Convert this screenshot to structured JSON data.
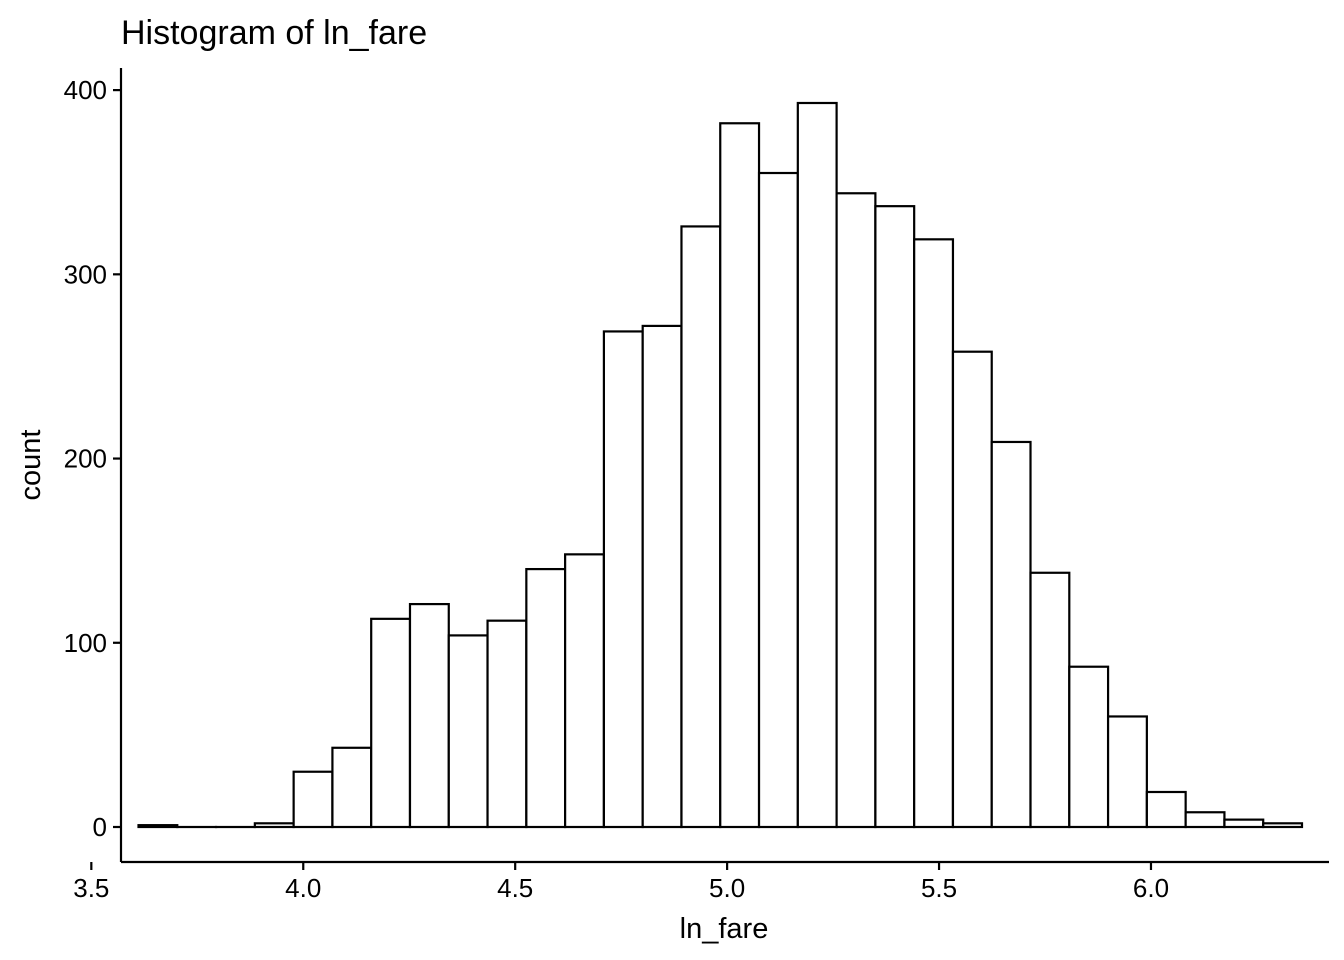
{
  "chart_data": {
    "type": "bar",
    "title": "Histogram of ln_fare",
    "xlabel": "ln_fare",
    "ylabel": "count",
    "xlim": [
      3.57,
      6.42
    ],
    "ylim": [
      -19,
      412
    ],
    "x_ticks": [
      {
        "value": 3.5,
        "label": "3.5"
      },
      {
        "value": 4.0,
        "label": "4.0"
      },
      {
        "value": 4.5,
        "label": "4.5"
      },
      {
        "value": 5.0,
        "label": "5.0"
      },
      {
        "value": 5.5,
        "label": "5.5"
      },
      {
        "value": 6.0,
        "label": "6.0"
      }
    ],
    "y_ticks": [
      {
        "value": 0,
        "label": "0"
      },
      {
        "value": 100,
        "label": "100"
      },
      {
        "value": 200,
        "label": "200"
      },
      {
        "value": 300,
        "label": "300"
      },
      {
        "value": 400,
        "label": "400"
      }
    ],
    "bins": [
      {
        "x0": 3.6113,
        "x1": 3.7028,
        "count": 1
      },
      {
        "x0": 3.7028,
        "x1": 3.7943,
        "count": 0
      },
      {
        "x0": 3.7943,
        "x1": 3.8858,
        "count": 0
      },
      {
        "x0": 3.8858,
        "x1": 3.9773,
        "count": 2
      },
      {
        "x0": 3.9773,
        "x1": 4.0688,
        "count": 30
      },
      {
        "x0": 4.0688,
        "x1": 4.1603,
        "count": 43
      },
      {
        "x0": 4.1603,
        "x1": 4.2518,
        "count": 113
      },
      {
        "x0": 4.2518,
        "x1": 4.3433,
        "count": 121
      },
      {
        "x0": 4.3433,
        "x1": 4.4348,
        "count": 104
      },
      {
        "x0": 4.4348,
        "x1": 4.5263,
        "count": 112
      },
      {
        "x0": 4.5263,
        "x1": 4.6178,
        "count": 140
      },
      {
        "x0": 4.6178,
        "x1": 4.7093,
        "count": 148
      },
      {
        "x0": 4.7093,
        "x1": 4.8008,
        "count": 269
      },
      {
        "x0": 4.8008,
        "x1": 4.8923,
        "count": 272
      },
      {
        "x0": 4.8923,
        "x1": 4.9838,
        "count": 326
      },
      {
        "x0": 4.9838,
        "x1": 5.0753,
        "count": 382
      },
      {
        "x0": 5.0753,
        "x1": 5.1668,
        "count": 355
      },
      {
        "x0": 5.1668,
        "x1": 5.2583,
        "count": 393
      },
      {
        "x0": 5.2583,
        "x1": 5.3498,
        "count": 344
      },
      {
        "x0": 5.3498,
        "x1": 5.4413,
        "count": 337
      },
      {
        "x0": 5.4413,
        "x1": 5.5328,
        "count": 319
      },
      {
        "x0": 5.5328,
        "x1": 5.6243,
        "count": 258
      },
      {
        "x0": 5.6243,
        "x1": 5.7158,
        "count": 209
      },
      {
        "x0": 5.7158,
        "x1": 5.8073,
        "count": 138
      },
      {
        "x0": 5.8073,
        "x1": 5.8988,
        "count": 87
      },
      {
        "x0": 5.8988,
        "x1": 5.9903,
        "count": 60
      },
      {
        "x0": 5.9903,
        "x1": 6.0818,
        "count": 19
      },
      {
        "x0": 6.0818,
        "x1": 6.1733,
        "count": 8
      },
      {
        "x0": 6.1733,
        "x1": 6.2648,
        "count": 4
      },
      {
        "x0": 6.2648,
        "x1": 6.3563,
        "count": 2
      }
    ],
    "fill_color": "#ffffff",
    "stroke_color": "#000000",
    "grid": false,
    "legend": "none"
  }
}
